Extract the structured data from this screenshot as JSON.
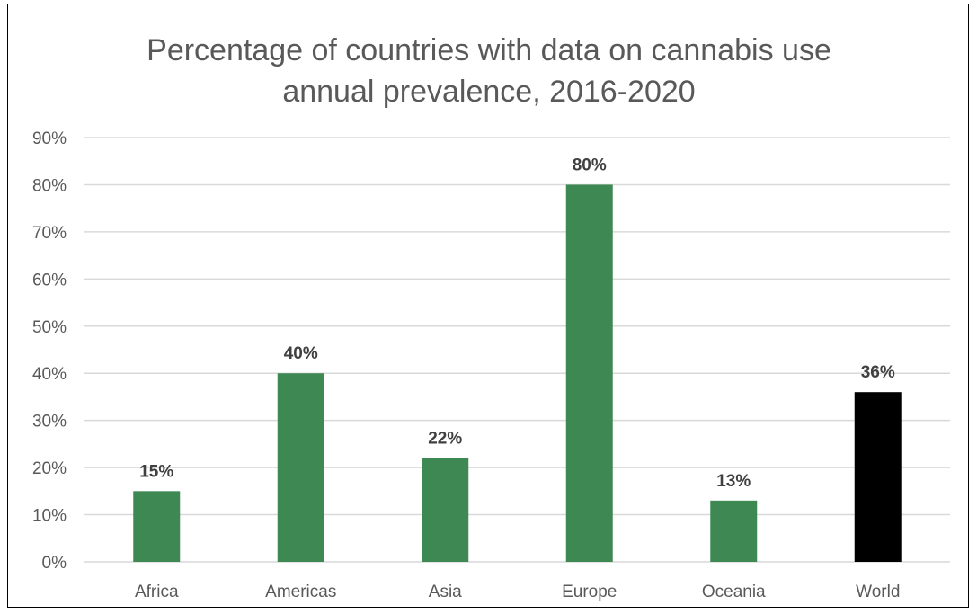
{
  "chart_data": {
    "type": "bar",
    "title": "Percentage of countries with data on cannabis use annual prevalence, 2016-2020",
    "title_lines": [
      "Percentage of countries with data on cannabis use",
      "annual prevalence, 2016-2020"
    ],
    "xlabel": "",
    "ylabel": "",
    "categories": [
      "Africa",
      "Americas",
      "Asia",
      "Europe",
      "Oceania",
      "World"
    ],
    "values": [
      15,
      40,
      22,
      80,
      13,
      36
    ],
    "value_labels": [
      "15%",
      "40%",
      "22%",
      "80%",
      "13%",
      "36%"
    ],
    "bar_colors": [
      "#3e8853",
      "#3e8853",
      "#3e8853",
      "#3e8853",
      "#3e8853",
      "#000000"
    ],
    "ylim": [
      0,
      90
    ],
    "yticks": [
      0,
      10,
      20,
      30,
      40,
      50,
      60,
      70,
      80,
      90
    ],
    "ytick_labels": [
      "0%",
      "10%",
      "20%",
      "30%",
      "40%",
      "50%",
      "60%",
      "70%",
      "80%",
      "90%"
    ],
    "grid": true,
    "legend": "none"
  },
  "colors": {
    "bar": "#3e8853",
    "world_bar": "#000000",
    "grid": "#d9d9d9",
    "axis_text": "#595959",
    "label_text": "#404040"
  }
}
